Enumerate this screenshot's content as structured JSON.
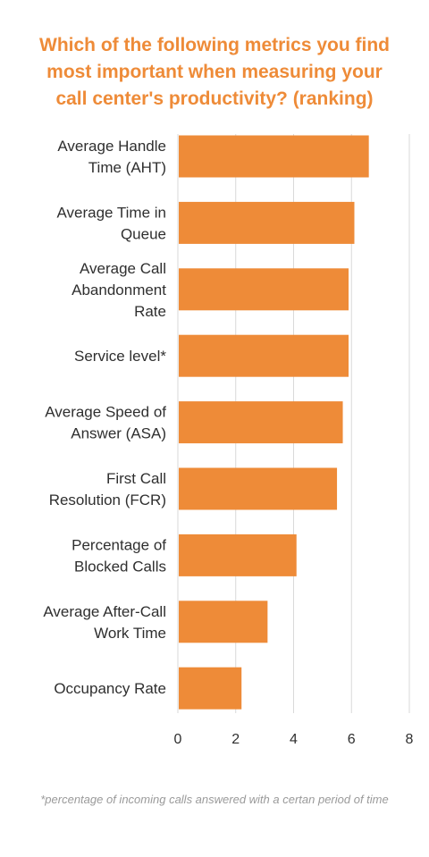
{
  "title_lines": [
    "Which of the following metrics you find",
    "most important when measuring your",
    "call center's productivity? (ranking)"
  ],
  "footnote": "*percentage of incoming calls answered with a certan period of time",
  "colors": {
    "bar": "#ee8b38",
    "title": "#ee8b38",
    "grid": "#d9d9d9",
    "text": "#2f2f2f"
  },
  "chart_data": {
    "type": "bar",
    "orientation": "horizontal",
    "categories": [
      [
        "Average Handle",
        "Time (AHT)"
      ],
      [
        "Average Time in",
        "Queue"
      ],
      [
        "Average Call",
        "Abandonment",
        "Rate"
      ],
      [
        "Service level*"
      ],
      [
        "Average Speed of",
        "Answer (ASA)"
      ],
      [
        "First Call",
        "Resolution (FCR)"
      ],
      [
        "Percentage of",
        "Blocked Calls"
      ],
      [
        "Average After-Call",
        "Work Time"
      ],
      [
        "Occupancy Rate"
      ]
    ],
    "values": [
      6.6,
      6.1,
      5.9,
      5.9,
      5.7,
      5.5,
      4.1,
      3.1,
      2.2
    ],
    "xlim": [
      0,
      8
    ],
    "xticks": [
      0,
      2,
      4,
      6,
      8
    ],
    "grid": true
  }
}
